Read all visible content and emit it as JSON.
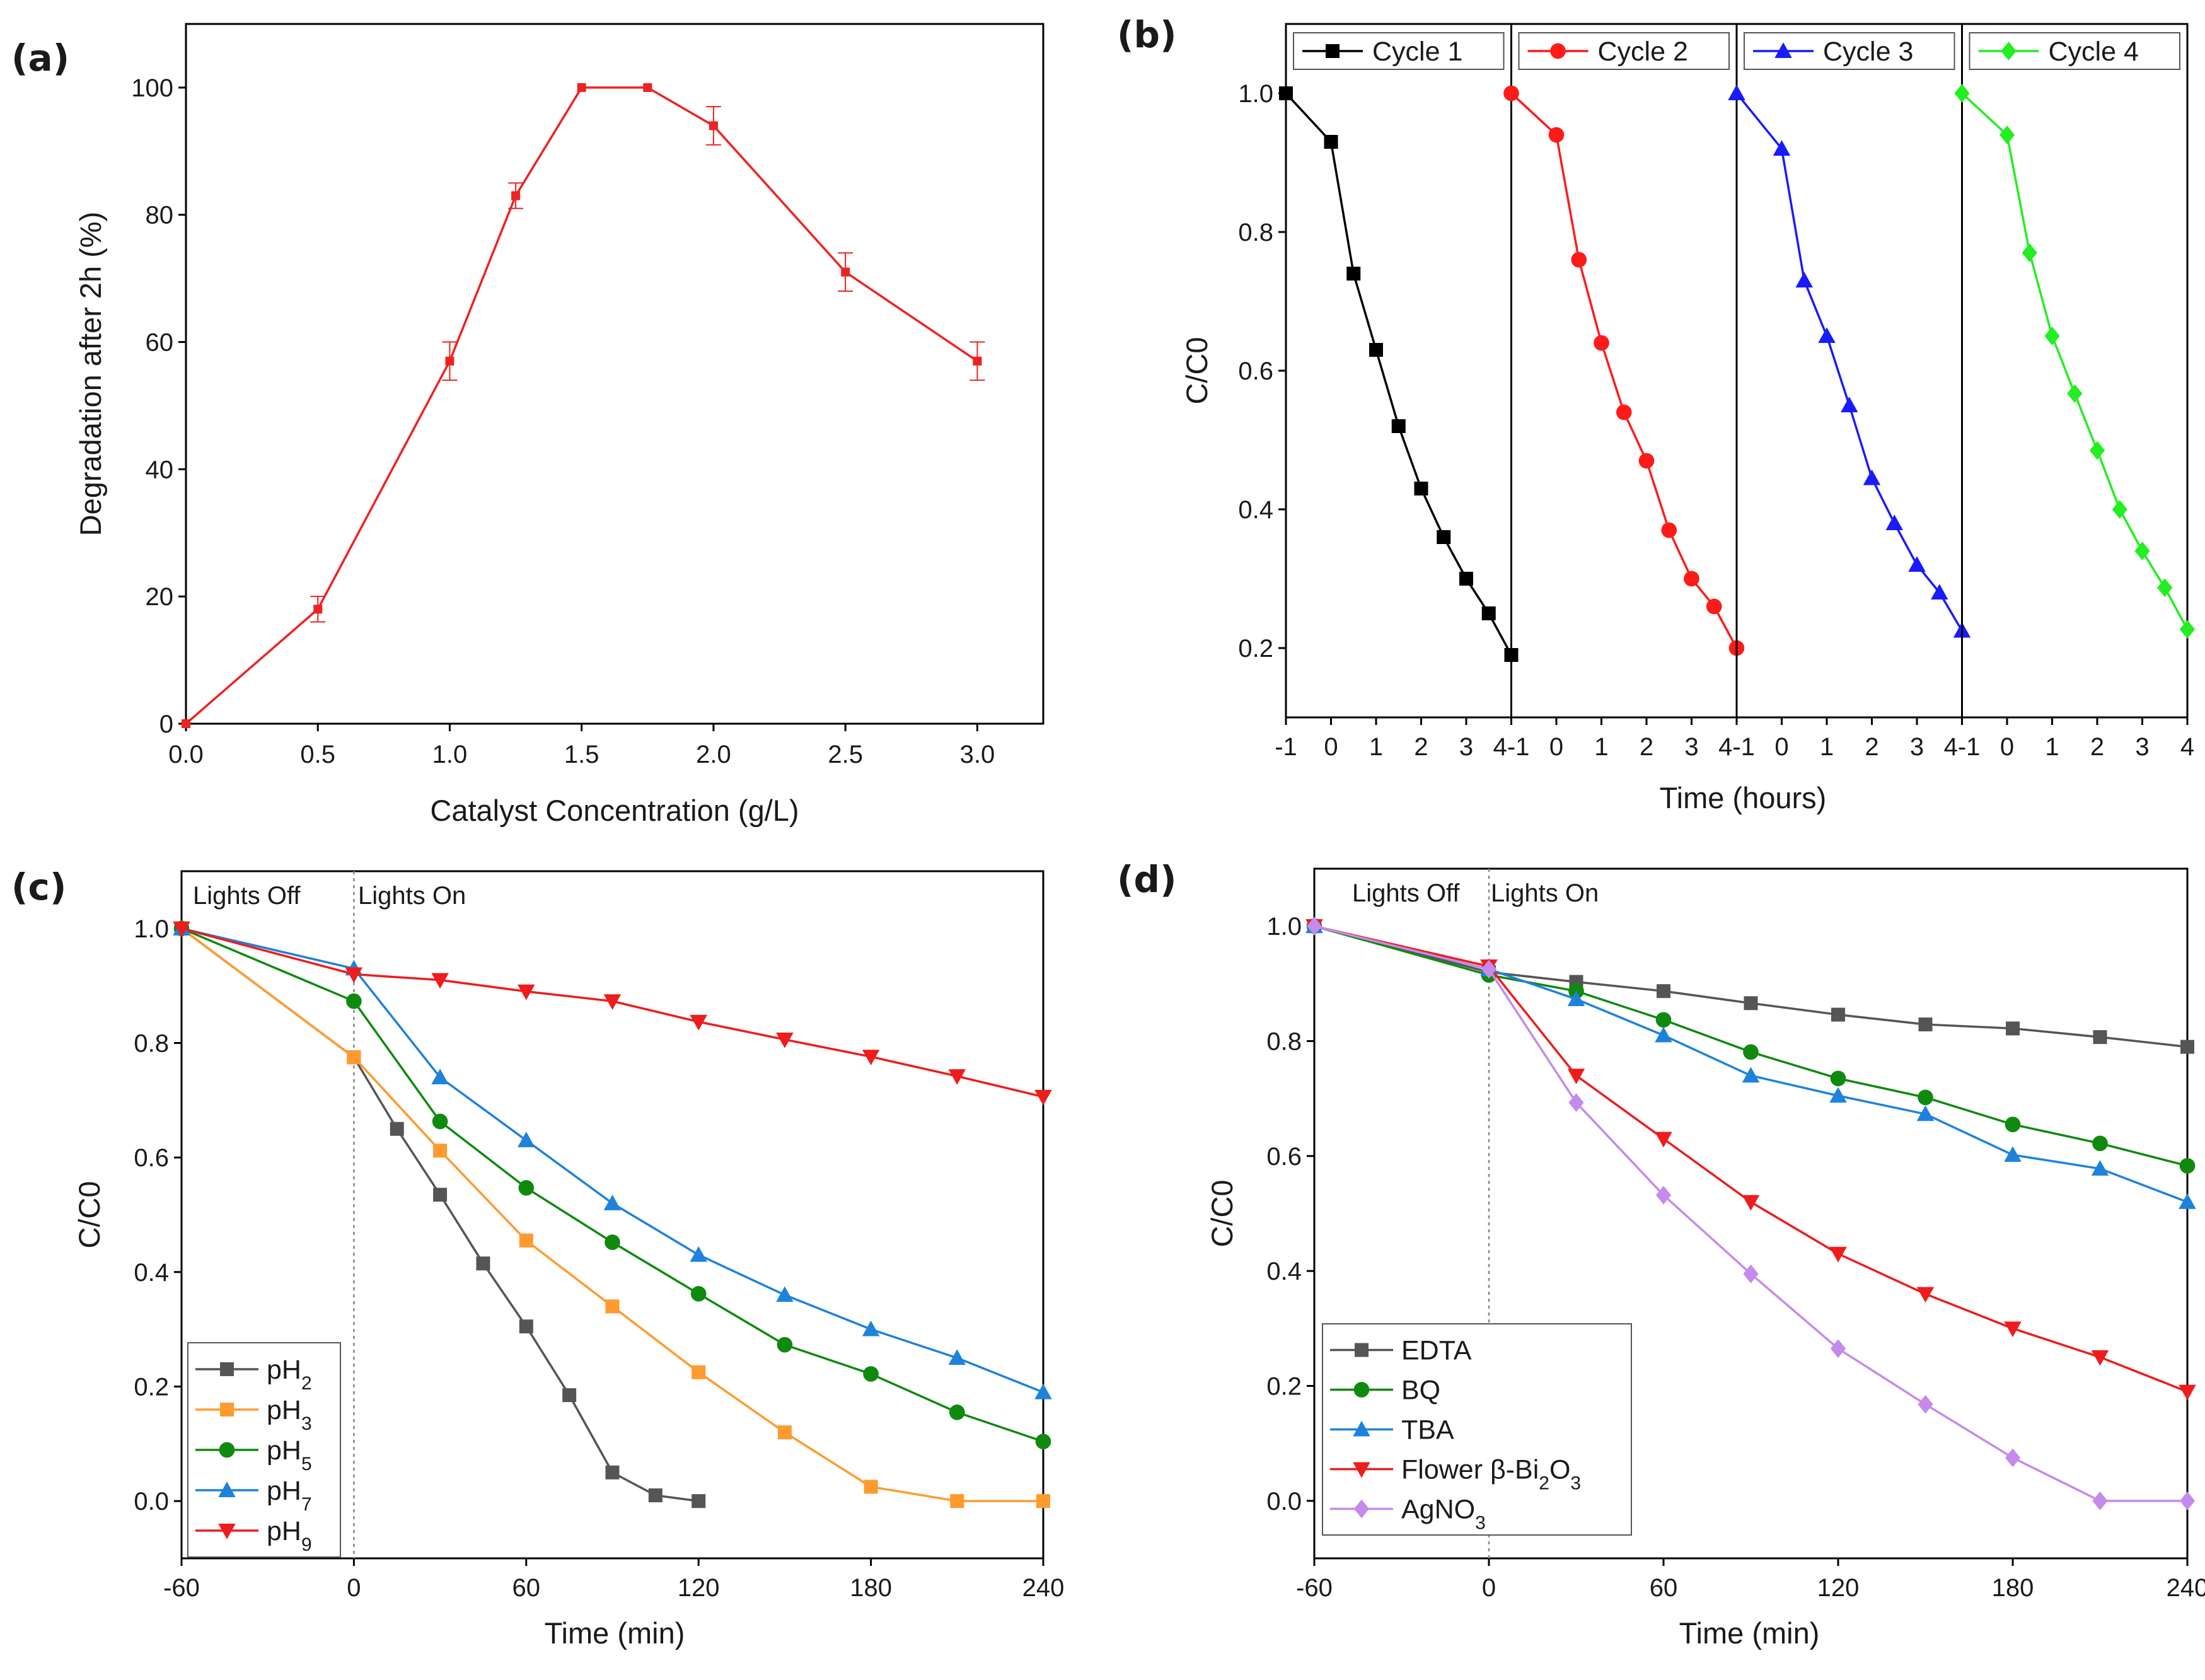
{
  "figure": {
    "panels": [
      "(a)",
      "(b)",
      "(c)",
      "(d)"
    ]
  },
  "chart_data": [
    {
      "id": "a",
      "type": "line",
      "panel_label": "(a)",
      "xlabel": "Catalyst Concentration (g/L)",
      "ylabel": "Degradation after 2h (%)",
      "xlim": [
        0,
        3.25
      ],
      "ylim": [
        0,
        110
      ],
      "xticks": [
        "0.0",
        "0.5",
        "1.0",
        "1.5",
        "2.0",
        "2.5",
        "3.0"
      ],
      "yticks": [
        "0",
        "20",
        "40",
        "60",
        "80",
        "100"
      ],
      "color": "#ee2222",
      "series": [
        {
          "name": "Degradation",
          "x": [
            0,
            0.5,
            1.0,
            1.25,
            1.5,
            1.75,
            2.0,
            2.5,
            3.0
          ],
          "y": [
            0,
            18,
            57,
            83,
            100,
            100,
            94,
            71,
            57
          ],
          "err": [
            0,
            2,
            3,
            2,
            0,
            0,
            3,
            3,
            3
          ]
        }
      ]
    },
    {
      "id": "b",
      "type": "line",
      "panel_label": "(b)",
      "xlabel": "Time (hours)",
      "ylabel": "C/C0",
      "ylim": [
        0.1,
        1.1
      ],
      "yticks": [
        "0.2",
        "0.4",
        "0.6",
        "0.8",
        "1.0"
      ],
      "xticks": [
        "-1",
        "0",
        "1",
        "2",
        "3",
        "4"
      ],
      "x": [
        -1,
        0,
        0.5,
        1,
        1.5,
        2,
        2.5,
        3,
        3.5,
        4
      ],
      "series": [
        {
          "name": "Cycle 1",
          "color": "#000000",
          "marker": "square",
          "y": [
            1.0,
            0.93,
            0.74,
            0.63,
            0.52,
            0.43,
            0.36,
            0.3,
            0.25,
            0.19
          ]
        },
        {
          "name": "Cycle 2",
          "color": "#ff1a1a",
          "marker": "circle",
          "y": [
            1.0,
            0.94,
            0.76,
            0.64,
            0.54,
            0.47,
            0.37,
            0.3,
            0.26,
            0.2
          ]
        },
        {
          "name": "Cycle 3",
          "color": "#1a1aff",
          "marker": "triangle",
          "y": [
            1.0,
            0.92,
            0.73,
            0.65,
            0.55,
            0.445,
            0.38,
            0.32,
            0.28,
            0.225
          ]
        },
        {
          "name": "Cycle 4",
          "color": "#22ee22",
          "marker": "diamond",
          "y": [
            1.0,
            0.94,
            0.77,
            0.65,
            0.567,
            0.485,
            0.4,
            0.34,
            0.287,
            0.227
          ]
        }
      ]
    },
    {
      "id": "c",
      "type": "line",
      "panel_label": "(c)",
      "xlabel": "Time (min)",
      "ylabel": "C/C0",
      "xlim": [
        -60,
        240
      ],
      "ylim": [
        -0.1,
        1.1
      ],
      "xticks": [
        "-60",
        "0",
        "60",
        "120",
        "180",
        "240"
      ],
      "yticks": [
        "0.0",
        "0.2",
        "0.4",
        "0.6",
        "0.8",
        "1.0"
      ],
      "annotations": [
        "Lights Off",
        "Lights On"
      ],
      "series": [
        {
          "name": "pH2",
          "color": "#555555",
          "marker": "square",
          "x": [
            -60,
            0,
            15,
            30,
            45,
            60,
            75,
            90,
            105,
            120
          ],
          "y": [
            1.0,
            0.775,
            0.65,
            0.535,
            0.415,
            0.305,
            0.185,
            0.05,
            0.01,
            0.0
          ]
        },
        {
          "name": "pH3",
          "color": "#ff9a2e",
          "marker": "square",
          "x": [
            -60,
            0,
            30,
            60,
            90,
            120,
            150,
            180,
            210,
            240
          ],
          "y": [
            1.0,
            0.775,
            0.612,
            0.455,
            0.34,
            0.225,
            0.12,
            0.025,
            0.0,
            0.0
          ]
        },
        {
          "name": "pH5",
          "color": "#0f8a0f",
          "marker": "circle",
          "x": [
            -60,
            0,
            30,
            60,
            90,
            120,
            150,
            180,
            210,
            240
          ],
          "y": [
            1.0,
            0.873,
            0.663,
            0.547,
            0.452,
            0.362,
            0.273,
            0.222,
            0.155,
            0.104
          ]
        },
        {
          "name": "pH7",
          "color": "#1e82dc",
          "marker": "triangle",
          "x": [
            -60,
            0,
            30,
            60,
            90,
            120,
            150,
            180,
            210,
            240
          ],
          "y": [
            1.0,
            0.93,
            0.74,
            0.63,
            0.52,
            0.43,
            0.36,
            0.3,
            0.25,
            0.19
          ]
        },
        {
          "name": "pH9",
          "color": "#ee1c1c",
          "marker": "triangle-down",
          "x": [
            -60,
            0,
            30,
            60,
            90,
            120,
            150,
            180,
            210,
            240
          ],
          "y": [
            1.0,
            0.92,
            0.91,
            0.89,
            0.873,
            0.837,
            0.806,
            0.776,
            0.742,
            0.706
          ]
        }
      ]
    },
    {
      "id": "d",
      "type": "line",
      "panel_label": "(d)",
      "xlabel": "Time (min)",
      "ylabel": "C/C0",
      "xlim": [
        -60,
        240
      ],
      "ylim": [
        -0.1,
        1.1
      ],
      "xticks": [
        "-60",
        "0",
        "60",
        "120",
        "180",
        "240"
      ],
      "yticks": [
        "0.0",
        "0.2",
        "0.4",
        "0.6",
        "0.8",
        "1.0"
      ],
      "annotations": [
        "Lights Off",
        "Lights On"
      ],
      "x": [
        -60,
        0,
        30,
        60,
        90,
        120,
        150,
        180,
        210,
        240
      ],
      "series": [
        {
          "name": "EDTA",
          "color": "#555555",
          "marker": "square",
          "y": [
            1.0,
            0.92,
            0.903,
            0.887,
            0.866,
            0.846,
            0.829,
            0.822,
            0.807,
            0.79
          ]
        },
        {
          "name": "BQ",
          "color": "#0f8a0f",
          "marker": "circle",
          "y": [
            1.0,
            0.915,
            0.887,
            0.837,
            0.781,
            0.735,
            0.702,
            0.655,
            0.622,
            0.583
          ]
        },
        {
          "name": "TBA",
          "color": "#1e82dc",
          "marker": "triangle",
          "y": [
            1.0,
            0.925,
            0.873,
            0.81,
            0.74,
            0.705,
            0.673,
            0.602,
            0.578,
            0.52
          ]
        },
        {
          "name": "Flower β-Bi2O3",
          "color": "#ee1c1c",
          "marker": "triangle-down",
          "y": [
            1.0,
            0.93,
            0.74,
            0.63,
            0.52,
            0.43,
            0.36,
            0.3,
            0.25,
            0.19
          ]
        },
        {
          "name": "AgNO3",
          "color": "#c58aec",
          "marker": "diamond",
          "y": [
            1.0,
            0.925,
            0.693,
            0.532,
            0.395,
            0.265,
            0.168,
            0.075,
            0.0,
            0.0
          ]
        }
      ]
    }
  ]
}
